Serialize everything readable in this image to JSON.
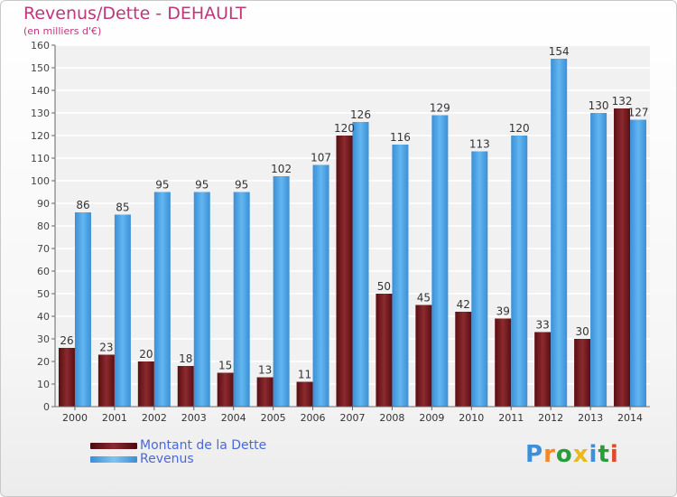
{
  "header": {
    "title": "Revenus/Dette - DEHAULT",
    "subtitle": "(en milliers d'€)"
  },
  "colors": {
    "dette": "#7a1c22",
    "revenus": "#4aa4e6",
    "title": "#c0357c",
    "legend_text": "#4b68d8"
  },
  "legend": [
    {
      "label": "Montant de la Dette",
      "color": "#6b1418"
    },
    {
      "label": "Revenus",
      "color": "#4aa4e6"
    }
  ],
  "logo": {
    "text": "Proxiti",
    "letters": [
      "P",
      "r",
      "o",
      "x",
      "i",
      "t",
      "i"
    ],
    "letter_colors": [
      "#3d8fd9",
      "#f08a24",
      "#2a9d3a",
      "#e8b81c",
      "#3d8fd9",
      "#2a9d3a",
      "#e04a2a"
    ]
  },
  "chart_data": {
    "type": "bar",
    "categories": [
      "2000",
      "2001",
      "2002",
      "2003",
      "2004",
      "2005",
      "2006",
      "2007",
      "2008",
      "2009",
      "2010",
      "2011",
      "2012",
      "2013",
      "2014"
    ],
    "series": [
      {
        "name": "Montant de la Dette",
        "values": [
          26,
          23,
          20,
          18,
          15,
          13,
          11,
          120,
          50,
          45,
          42,
          39,
          33,
          30,
          132
        ]
      },
      {
        "name": "Revenus",
        "values": [
          86,
          85,
          95,
          95,
          95,
          102,
          107,
          126,
          116,
          129,
          113,
          120,
          154,
          130,
          127
        ]
      }
    ],
    "y_ticks": [
      0,
      10,
      20,
      30,
      40,
      50,
      60,
      70,
      80,
      90,
      100,
      110,
      120,
      130,
      140,
      150,
      160
    ],
    "ylim": [
      0,
      160
    ],
    "grid": true,
    "legend_position": "bottom-left"
  }
}
